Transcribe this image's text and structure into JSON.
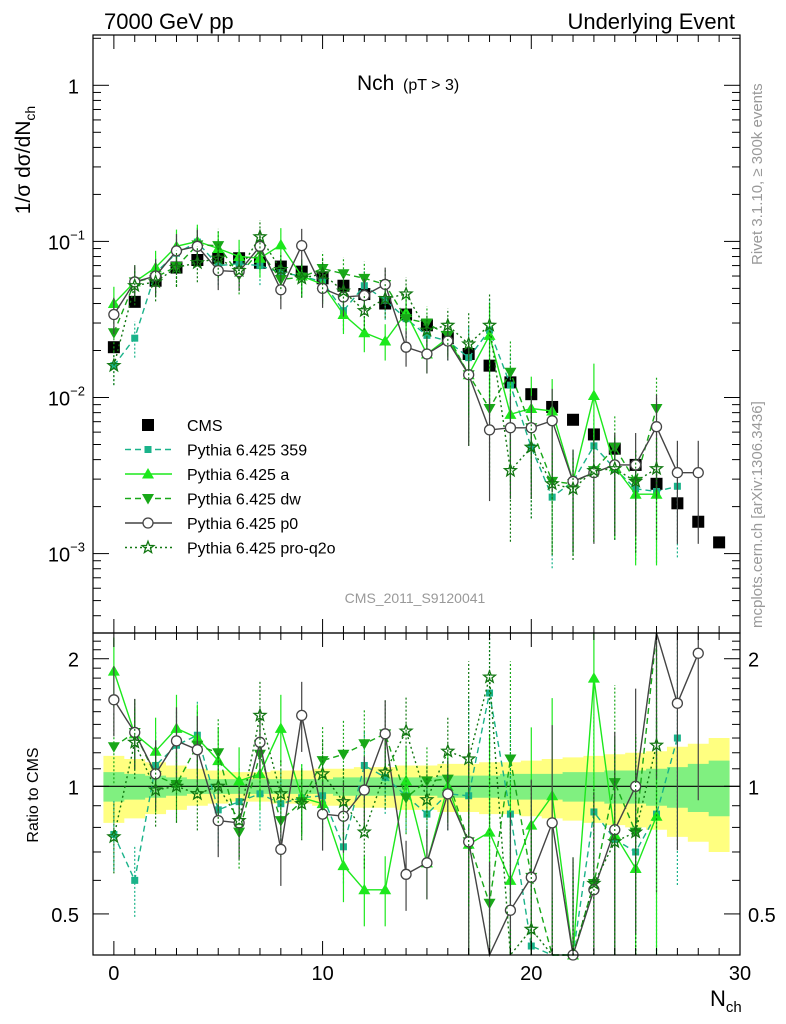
{
  "header": {
    "left": "7000 GeV pp",
    "right": "Underlying Event"
  },
  "side": {
    "rivet": "Rivet 3.1.10, ≥ 300k events",
    "mcplots": "mcplots.cern.ch [arXiv:1306.3436]"
  },
  "plot_title": "Nch",
  "plot_title_sub": "(pT >  3)",
  "watermark": "CMS_2011_S9120041",
  "colors": {
    "data": "#000000",
    "p359": "#1ab38a",
    "pa": "#1de81d",
    "pdw": "#18a818",
    "pp0": "#444444",
    "pq2o": "#117711",
    "band_yellow": "#ffff80",
    "band_green": "#80f080"
  },
  "chart_data": [
    {
      "type": "scatter",
      "panel": "main",
      "ylabel": "1/σ dσ/dN_ch",
      "yscale": "log",
      "ylim": [
        0.00031,
        2.1
      ],
      "xlim": [
        -1,
        30
      ],
      "yticks": [
        "10^-3",
        "10^-2",
        "10^-1",
        "1"
      ],
      "legend_position": "lower-left",
      "series": [
        {
          "name": "CMS",
          "style": "black-square",
          "x": [
            0,
            1,
            2,
            3,
            4,
            5,
            6,
            7,
            8,
            9,
            10,
            11,
            12,
            13,
            14,
            15,
            16,
            17,
            18,
            19,
            20,
            21,
            22,
            23,
            24,
            25,
            26,
            27,
            28,
            29
          ],
          "y": [
            0.021,
            0.041,
            0.056,
            0.068,
            0.076,
            0.078,
            0.078,
            0.073,
            0.069,
            0.064,
            0.058,
            0.052,
            0.046,
            0.04,
            0.034,
            0.029,
            0.024,
            0.019,
            0.016,
            0.0125,
            0.0105,
            0.0087,
            0.0072,
            0.0058,
            0.0047,
            0.0037,
            0.0028,
            0.0021,
            0.0016,
            0.00118
          ]
        },
        {
          "name": "Pythia 6.425 359",
          "style": "dashed-square",
          "x": [
            0,
            1,
            2,
            3,
            4,
            5,
            6,
            7,
            8,
            9,
            10,
            11,
            12,
            13,
            14,
            15,
            16,
            17,
            18,
            19,
            20,
            21,
            22,
            23,
            24,
            25,
            26,
            27
          ],
          "y": [
            0.016,
            0.024,
            0.063,
            0.084,
            0.099,
            0.07,
            0.072,
            0.07,
            0.063,
            0.06,
            0.055,
            0.036,
            0.052,
            0.042,
            0.032,
            0.025,
            0.023,
            0.018,
            0.027,
            0.012,
            0.0048,
            0.0023,
            0.0029,
            0.0049,
            0.0035,
            0.0026,
            0.0025,
            0.0027
          ]
        },
        {
          "name": "Pythia 6.425 a",
          "style": "solid-triangle-up",
          "x": [
            0,
            1,
            2,
            3,
            4,
            5,
            6,
            7,
            8,
            9,
            10,
            11,
            12,
            13,
            14,
            15,
            16,
            17,
            18,
            19,
            20,
            21,
            22,
            23,
            24,
            25,
            26
          ],
          "y": [
            0.04,
            0.055,
            0.068,
            0.093,
            0.1,
            0.09,
            0.08,
            0.078,
            0.095,
            0.06,
            0.053,
            0.034,
            0.026,
            0.023,
            0.035,
            0.019,
            0.024,
            0.014,
            0.025,
            0.0078,
            0.0085,
            0.0082,
            0.0029,
            0.0103,
            0.0036,
            0.0024,
            0.0024
          ]
        },
        {
          "name": "Pythia 6.425 dw",
          "style": "dashed-triangle-down",
          "x": [
            0,
            1,
            2,
            3,
            4,
            5,
            6,
            7,
            8,
            9,
            10,
            11,
            12,
            13,
            14,
            15,
            16,
            17,
            18,
            19,
            20,
            21,
            22,
            23,
            24,
            25,
            26
          ],
          "y": [
            0.026,
            0.055,
            0.059,
            0.069,
            0.095,
            0.094,
            0.061,
            0.087,
            0.057,
            0.059,
            0.067,
            0.062,
            0.058,
            0.053,
            0.032,
            0.03,
            0.025,
            0.014,
            0.0085,
            0.0145,
            0.0064,
            0.0029,
            0.0028,
            0.0034,
            0.0048,
            0.0029,
            0.0085
          ]
        },
        {
          "name": "Pythia 6.425 p0",
          "style": "solid-open-circle",
          "x": [
            0,
            1,
            2,
            3,
            4,
            5,
            6,
            7,
            8,
            9,
            10,
            11,
            12,
            13,
            14,
            15,
            16,
            17,
            18,
            19,
            20,
            21,
            22,
            23,
            24,
            25,
            26,
            27,
            28
          ],
          "y": [
            0.034,
            0.055,
            0.06,
            0.087,
            0.093,
            0.065,
            0.064,
            0.093,
            0.049,
            0.094,
            0.05,
            0.044,
            0.045,
            0.053,
            0.021,
            0.019,
            0.023,
            0.014,
            0.0062,
            0.0064,
            0.0064,
            0.0071,
            0.0029,
            0.0033,
            0.0037,
            0.0037,
            0.0065,
            0.0033,
            0.0033
          ]
        },
        {
          "name": "Pythia 6.425 pro-q2o",
          "style": "dotted-star",
          "x": [
            0,
            1,
            2,
            3,
            4,
            5,
            6,
            7,
            8,
            9,
            10,
            11,
            12,
            13,
            14,
            15,
            16,
            17,
            18,
            19,
            20,
            21,
            22,
            23,
            24,
            25,
            26
          ],
          "y": [
            0.016,
            0.052,
            0.055,
            0.068,
            0.073,
            0.078,
            0.065,
            0.107,
            0.066,
            0.058,
            0.062,
            0.048,
            0.036,
            0.043,
            0.046,
            0.027,
            0.029,
            0.022,
            0.029,
            0.0034,
            0.0048,
            0.0028,
            0.0026,
            0.0034,
            0.0035,
            0.0029,
            0.0035
          ]
        }
      ]
    },
    {
      "type": "line",
      "panel": "ratio",
      "xlabel": "N_ch",
      "ylabel": "Ratio to CMS",
      "xlim": [
        -1,
        30
      ],
      "ylim": [
        0.4,
        2.3
      ],
      "xticks": [
        0,
        10,
        20,
        30
      ],
      "yticks": [
        0.5,
        1,
        2
      ],
      "band_yellow_halfwidth": [
        0.18,
        0.16,
        0.14,
        0.12,
        0.1,
        0.09,
        0.08,
        0.08,
        0.09,
        0.09,
        0.1,
        0.1,
        0.11,
        0.11,
        0.12,
        0.12,
        0.13,
        0.13,
        0.14,
        0.14,
        0.15,
        0.16,
        0.17,
        0.18,
        0.19,
        0.2,
        0.21,
        0.24,
        0.26,
        0.3
      ],
      "band_green_halfwidth": [
        0.08,
        0.07,
        0.06,
        0.05,
        0.04,
        0.04,
        0.04,
        0.04,
        0.04,
        0.04,
        0.04,
        0.05,
        0.05,
        0.05,
        0.05,
        0.05,
        0.06,
        0.06,
        0.06,
        0.07,
        0.07,
        0.07,
        0.08,
        0.08,
        0.09,
        0.09,
        0.1,
        0.11,
        0.13,
        0.15
      ],
      "series": [
        {
          "name": "Pythia 6.425 359",
          "x": [
            0,
            1,
            2,
            3,
            4,
            5,
            6,
            7,
            8,
            9,
            10,
            11,
            12,
            13,
            14,
            15,
            16,
            17,
            18,
            19,
            20,
            21,
            22,
            23,
            24,
            25,
            26,
            27
          ],
          "y": [
            0.77,
            0.6,
            1.12,
            1.25,
            1.32,
            0.88,
            0.92,
            0.96,
            0.91,
            0.94,
            0.95,
            0.72,
            1.12,
            1.05,
            0.95,
            0.86,
            0.96,
            0.95,
            1.66,
            0.86,
            0.42,
            0.27,
            0.37,
            0.87,
            0.75,
            0.7,
            0.86,
            1.3
          ]
        },
        {
          "name": "Pythia 6.425 a",
          "x": [
            0,
            1,
            2,
            3,
            4,
            5,
            6,
            7,
            8,
            9,
            10,
            11,
            12,
            13,
            14,
            15,
            16,
            17,
            18,
            19,
            20,
            21,
            22,
            23,
            24,
            25,
            26
          ],
          "y": [
            1.87,
            1.33,
            1.21,
            1.37,
            1.3,
            1.15,
            1.03,
            1.07,
            1.37,
            0.94,
            0.91,
            0.65,
            0.57,
            0.57,
            1.03,
            0.66,
            1.0,
            0.73,
            0.78,
            0.6,
            0.81,
            0.95,
            0.4,
            1.8,
            0.77,
            0.64,
            0.85
          ]
        },
        {
          "name": "Pythia 6.425 dw",
          "x": [
            0,
            1,
            2,
            3,
            4,
            5,
            6,
            7,
            8,
            9,
            10,
            11,
            12,
            13,
            14,
            15,
            16,
            17,
            18,
            19,
            20,
            21,
            22,
            23,
            24,
            25,
            26
          ],
          "y": [
            1.24,
            1.34,
            1.06,
            1.01,
            1.25,
            1.2,
            0.78,
            1.19,
            0.83,
            0.92,
            1.15,
            1.19,
            1.26,
            1.33,
            0.94,
            1.03,
            1.04,
            0.74,
            0.53,
            1.16,
            0.61,
            0.33,
            0.39,
            0.59,
            1.02,
            0.78,
            3.0
          ]
        },
        {
          "name": "Pythia 6.425 p0",
          "x": [
            0,
            1,
            2,
            3,
            4,
            5,
            6,
            7,
            8,
            9,
            10,
            11,
            12,
            13,
            14,
            15,
            16,
            17,
            18,
            19,
            20,
            21,
            22,
            23,
            24,
            25,
            26,
            27,
            28
          ],
          "y": [
            1.6,
            1.34,
            1.07,
            1.28,
            1.22,
            0.83,
            0.82,
            1.27,
            0.71,
            1.47,
            0.86,
            0.85,
            0.98,
            1.33,
            0.62,
            0.66,
            0.96,
            0.74,
            0.39,
            0.51,
            0.61,
            0.82,
            0.4,
            0.57,
            0.79,
            1.0,
            2.32,
            1.57,
            2.06
          ]
        },
        {
          "name": "Pythia 6.425 pro-q2o",
          "x": [
            0,
            1,
            2,
            3,
            4,
            5,
            6,
            7,
            8,
            9,
            10,
            11,
            12,
            13,
            14,
            15,
            16,
            17,
            18,
            19,
            20,
            21,
            22,
            23,
            24,
            25,
            26
          ],
          "y": [
            0.76,
            1.27,
            0.98,
            1.0,
            0.96,
            1.0,
            0.83,
            1.47,
            0.96,
            0.91,
            1.07,
            0.92,
            0.78,
            1.08,
            1.35,
            0.93,
            1.21,
            1.16,
            1.81,
            0.27,
            0.46,
            0.32,
            0.36,
            0.59,
            0.74,
            0.78,
            1.25
          ]
        }
      ]
    }
  ]
}
